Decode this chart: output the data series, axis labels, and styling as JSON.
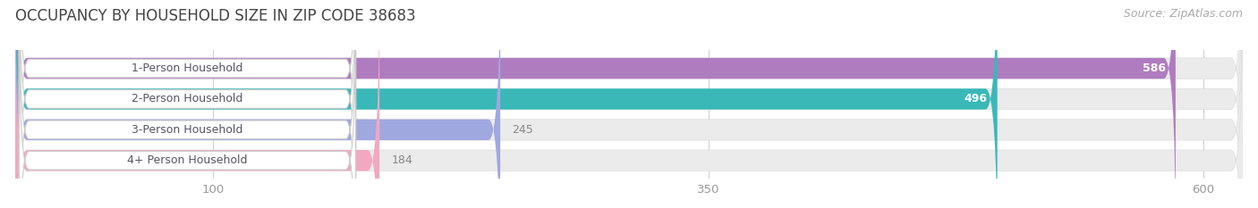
{
  "title": "OCCUPANCY BY HOUSEHOLD SIZE IN ZIP CODE 38683",
  "source": "Source: ZipAtlas.com",
  "categories": [
    "1-Person Household",
    "2-Person Household",
    "3-Person Household",
    "4+ Person Household"
  ],
  "values": [
    586,
    496,
    245,
    184
  ],
  "bar_colors": [
    "#b07cc0",
    "#3ab8b8",
    "#a0a8e0",
    "#f2a8c0"
  ],
  "bar_bg_color": "#ebebeb",
  "background_color": "#ffffff",
  "xlim_max": 620,
  "xticks": [
    100,
    350,
    600
  ],
  "label_colors": [
    "white",
    "white",
    "#888888",
    "#888888"
  ],
  "title_fontsize": 12,
  "source_fontsize": 9,
  "tick_fontsize": 9.5,
  "bar_label_fontsize": 9,
  "category_fontsize": 9
}
